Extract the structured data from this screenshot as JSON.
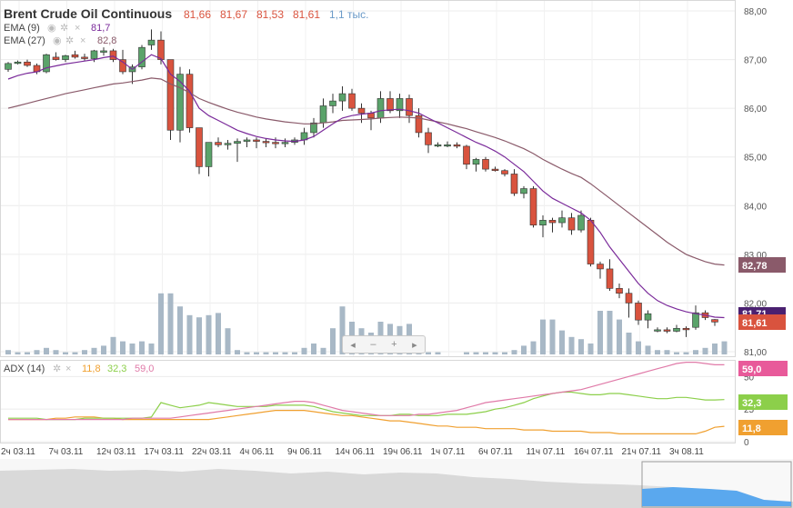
{
  "header": {
    "symbol": "Brent Crude Oil Continuous",
    "open": "81,66",
    "high": "81,67",
    "low": "81,53",
    "close": "81,61",
    "volume": "1,1 тыс."
  },
  "indicators": {
    "ema9": {
      "label": "EMA (9)",
      "value": "81,7",
      "color": "#7a2a9a"
    },
    "ema27": {
      "label": "EMA (27)",
      "value": "82,8",
      "color": "#8a5a6a"
    },
    "adx": {
      "label": "ADX (14)",
      "adx_value": "11,8",
      "plus_di": "32,3",
      "minus_di": "59,0",
      "adx_color": "#f0a030",
      "plus_color": "#8ccf4a",
      "minus_color": "#e07aa8"
    }
  },
  "price_tags": {
    "ema27": "82,78",
    "ema9": "81,71",
    "close": "81,61"
  },
  "adx_tags": {
    "minus_di": "59,0",
    "plus_di": "32,3",
    "adx": "11,8"
  },
  "nav": {
    "left": "◂",
    "minus": "‒",
    "plus": "+",
    "right": "▸"
  },
  "colors": {
    "up": "#5aa36a",
    "down": "#d9533e",
    "volume": "#a8b8c6"
  },
  "chart_data": [
    {
      "type": "candlestick",
      "title": "Brent Crude Oil Continuous",
      "y_ticks": [
        "88,00",
        "87,00",
        "86,00",
        "85,00",
        "84,00",
        "83,00",
        "82,00",
        "81,00"
      ],
      "ylim": [
        81,
        88
      ],
      "x_ticks": [
        "2ч 03.11",
        "7ч 03.11",
        "12ч 03.11",
        "17ч 03.11",
        "22ч 03.11",
        "4ч 06.11",
        "9ч 06.11",
        "14ч 06.11",
        "19ч 06.11",
        "1ч 07.11",
        "6ч 07.11",
        "11ч 07.11",
        "16ч 07.11",
        "21ч 07.11",
        "3ч 08.11"
      ],
      "grid": true,
      "ohlc": [
        [
          86.8,
          86.95,
          86.75,
          86.92
        ],
        [
          86.92,
          86.98,
          86.9,
          86.95
        ],
        [
          86.95,
          87.0,
          86.85,
          86.88
        ],
        [
          86.88,
          86.92,
          86.7,
          86.75
        ],
        [
          86.75,
          87.12,
          86.72,
          87.1
        ],
        [
          87.05,
          87.15,
          86.98,
          87.0
        ],
        [
          87.0,
          87.1,
          86.95,
          87.08
        ],
        [
          87.1,
          87.18,
          87.02,
          87.05
        ],
        [
          87.05,
          87.12,
          86.98,
          87.02
        ],
        [
          87.02,
          87.2,
          86.95,
          87.18
        ],
        [
          87.15,
          87.25,
          87.08,
          87.18
        ],
        [
          87.18,
          87.22,
          86.95,
          87.0
        ],
        [
          87.0,
          87.2,
          86.7,
          86.75
        ],
        [
          86.75,
          86.9,
          86.5,
          86.85
        ],
        [
          86.85,
          87.3,
          86.8,
          87.25
        ],
        [
          87.3,
          87.62,
          87.2,
          87.4
        ],
        [
          87.4,
          87.58,
          86.9,
          87.0
        ],
        [
          87.0,
          86.95,
          85.35,
          85.55
        ],
        [
          85.55,
          86.85,
          85.3,
          86.7
        ],
        [
          86.7,
          86.8,
          85.5,
          85.6
        ],
        [
          85.6,
          85.6,
          84.65,
          84.8
        ],
        [
          84.8,
          85.3,
          84.6,
          85.3
        ],
        [
          85.3,
          85.4,
          85.2,
          85.25
        ],
        [
          85.25,
          85.35,
          85.15,
          85.28
        ],
        [
          85.28,
          85.38,
          84.9,
          85.32
        ],
        [
          85.32,
          85.4,
          85.2,
          85.35
        ],
        [
          85.35,
          85.4,
          85.18,
          85.32
        ],
        [
          85.32,
          85.38,
          85.2,
          85.3
        ],
        [
          85.3,
          85.4,
          85.18,
          85.28
        ],
        [
          85.28,
          85.38,
          85.2,
          85.3
        ],
        [
          85.3,
          85.4,
          85.25,
          85.35
        ],
        [
          85.35,
          85.6,
          85.25,
          85.5
        ],
        [
          85.5,
          85.8,
          85.4,
          85.7
        ],
        [
          85.7,
          86.2,
          85.6,
          86.05
        ],
        [
          86.05,
          86.3,
          85.9,
          86.15
        ],
        [
          86.15,
          86.45,
          85.95,
          86.3
        ],
        [
          86.3,
          86.4,
          85.95,
          86.0
        ],
        [
          86.0,
          86.1,
          85.7,
          85.9
        ],
        [
          85.9,
          85.95,
          85.55,
          85.8
        ],
        [
          85.8,
          86.35,
          85.7,
          86.2
        ],
        [
          86.2,
          86.35,
          85.9,
          85.95
        ],
        [
          85.95,
          86.3,
          85.8,
          86.2
        ],
        [
          86.2,
          86.28,
          85.7,
          85.85
        ],
        [
          85.85,
          86.0,
          85.4,
          85.5
        ],
        [
          85.5,
          85.6,
          85.08,
          85.25
        ],
        [
          85.25,
          85.3,
          85.2,
          85.25
        ],
        [
          85.25,
          85.32,
          85.2,
          85.25
        ],
        [
          85.25,
          85.3,
          85.18,
          85.22
        ],
        [
          85.22,
          85.25,
          84.75,
          84.85
        ],
        [
          84.85,
          84.98,
          84.7,
          84.95
        ],
        [
          84.95,
          85.0,
          84.7,
          84.75
        ],
        [
          84.75,
          84.8,
          84.7,
          84.72
        ],
        [
          84.72,
          84.75,
          84.6,
          84.65
        ],
        [
          84.65,
          84.75,
          84.2,
          84.25
        ],
        [
          84.25,
          84.4,
          84.15,
          84.35
        ],
        [
          84.35,
          84.4,
          83.55,
          83.6
        ],
        [
          83.6,
          83.8,
          83.35,
          83.7
        ],
        [
          83.7,
          83.75,
          83.45,
          83.65
        ],
        [
          83.65,
          83.9,
          83.55,
          83.75
        ],
        [
          83.75,
          83.85,
          83.4,
          83.5
        ],
        [
          83.5,
          83.9,
          83.45,
          83.8
        ],
        [
          83.7,
          83.75,
          82.75,
          82.8
        ],
        [
          82.8,
          82.85,
          82.5,
          82.7
        ],
        [
          82.7,
          82.9,
          82.25,
          82.3
        ],
        [
          82.3,
          82.4,
          82.1,
          82.2
        ],
        [
          82.2,
          82.3,
          81.7,
          82.0
        ],
        [
          82.0,
          82.05,
          81.55,
          81.65
        ],
        [
          81.65,
          81.85,
          81.48,
          81.78
        ],
        [
          81.45,
          81.5,
          81.4,
          81.45
        ],
        [
          81.45,
          81.5,
          81.38,
          81.42
        ],
        [
          81.42,
          81.55,
          81.4,
          81.48
        ],
        [
          81.48,
          81.52,
          81.3,
          81.45
        ],
        [
          81.5,
          81.95,
          81.45,
          81.8
        ],
        [
          81.8,
          81.85,
          81.65,
          81.7
        ],
        [
          81.66,
          81.67,
          81.53,
          81.61
        ]
      ],
      "volume": [
        2,
        1,
        1,
        2,
        3,
        2,
        1,
        1,
        2,
        3,
        4,
        8,
        6,
        5,
        6,
        5,
        28,
        28,
        22,
        18,
        17,
        18,
        19,
        12,
        2,
        1,
        1,
        1,
        1,
        1,
        1,
        3,
        5,
        3,
        12,
        22,
        15,
        12,
        10,
        15,
        14,
        13,
        14,
        8,
        1,
        1,
        0,
        0,
        1,
        1,
        1,
        1,
        1,
        2,
        4,
        6,
        16,
        16,
        11,
        8,
        7,
        5,
        20,
        20,
        16,
        10,
        6,
        4,
        2,
        2,
        1,
        1,
        2,
        3,
        5,
        6
      ],
      "ema9": [
        86.6,
        86.67,
        86.72,
        86.75,
        86.83,
        86.87,
        86.91,
        86.94,
        86.97,
        87.0,
        87.04,
        87.07,
        86.95,
        86.8,
        86.95,
        87.1,
        87.02,
        86.7,
        86.55,
        86.35,
        86.0,
        85.85,
        85.75,
        85.65,
        85.55,
        85.48,
        85.42,
        85.38,
        85.35,
        85.33,
        85.32,
        85.35,
        85.42,
        85.55,
        85.68,
        85.8,
        85.85,
        85.88,
        85.9,
        85.95,
        85.97,
        85.98,
        85.95,
        85.9,
        85.8,
        85.7,
        85.6,
        85.5,
        85.4,
        85.3,
        85.22,
        85.12,
        85.0,
        84.85,
        84.7,
        84.5,
        84.3,
        84.15,
        84.05,
        83.95,
        83.85,
        83.7,
        83.45,
        83.15,
        82.9,
        82.65,
        82.4,
        82.2,
        82.05,
        81.95,
        81.88,
        81.82,
        81.78,
        81.75,
        81.71,
        81.7
      ],
      "ema27": [
        86.0,
        86.05,
        86.1,
        86.15,
        86.2,
        86.25,
        86.3,
        86.34,
        86.38,
        86.42,
        86.46,
        86.5,
        86.52,
        86.55,
        86.58,
        86.62,
        86.6,
        86.5,
        86.42,
        86.32,
        86.2,
        86.12,
        86.05,
        85.98,
        85.92,
        85.87,
        85.82,
        85.78,
        85.75,
        85.72,
        85.7,
        85.68,
        85.68,
        85.7,
        85.72,
        85.75,
        85.76,
        85.77,
        85.78,
        85.8,
        85.81,
        85.82,
        85.81,
        85.8,
        85.76,
        85.72,
        85.68,
        85.63,
        85.58,
        85.52,
        85.46,
        85.4,
        85.33,
        85.25,
        85.17,
        85.07,
        84.95,
        84.85,
        84.75,
        84.66,
        84.58,
        84.45,
        84.3,
        84.15,
        84.0,
        83.85,
        83.7,
        83.55,
        83.4,
        83.25,
        83.12,
        83.0,
        82.92,
        82.85,
        82.8,
        82.78
      ]
    },
    {
      "type": "line",
      "title": "ADX (14)",
      "y_ticks": [
        "50",
        "25",
        "0"
      ],
      "ylim": [
        0,
        60
      ],
      "series": [
        {
          "name": "ADX",
          "values": [
            17,
            17,
            17,
            17,
            17,
            18,
            18,
            19,
            19,
            19,
            18,
            18,
            17,
            17,
            17,
            17,
            17,
            17,
            17,
            17,
            17,
            17,
            18,
            19,
            20,
            21,
            22,
            23,
            24,
            24,
            24,
            24,
            23,
            22,
            21,
            20,
            20,
            19,
            18,
            17,
            16,
            16,
            15,
            14,
            13,
            12,
            12,
            11,
            11,
            11,
            10,
            10,
            10,
            10,
            9,
            9,
            9,
            8,
            8,
            8,
            8,
            7,
            7,
            7,
            6,
            6,
            6,
            6,
            6,
            6,
            6,
            6,
            6,
            8,
            11,
            11.8
          ]
        },
        {
          "name": "+DI",
          "values": [
            18,
            18,
            18,
            18,
            17,
            17,
            17,
            17,
            18,
            18,
            18,
            18,
            18,
            18,
            18,
            19,
            30,
            28,
            26,
            27,
            28,
            30,
            29,
            28,
            27,
            27,
            27,
            27,
            28,
            28,
            28,
            28,
            27,
            25,
            23,
            22,
            21,
            20,
            20,
            20,
            20,
            21,
            21,
            20,
            20,
            20,
            21,
            21,
            21,
            22,
            23,
            25,
            26,
            28,
            30,
            33,
            35,
            37,
            38,
            38,
            37,
            36,
            36,
            37,
            37,
            36,
            35,
            34,
            33,
            33,
            34,
            34,
            33,
            32,
            32,
            32.3
          ]
        },
        {
          "name": "-DI",
          "values": [
            17,
            17,
            17,
            17,
            17,
            17,
            17,
            17,
            17,
            17,
            17,
            17,
            17,
            18,
            18,
            18,
            18,
            18,
            19,
            20,
            21,
            22,
            23,
            24,
            25,
            26,
            27,
            28,
            29,
            30,
            31,
            31,
            30,
            28,
            26,
            24,
            23,
            22,
            21,
            20,
            20,
            20,
            20,
            21,
            21,
            22,
            23,
            24,
            26,
            28,
            30,
            31,
            32,
            33,
            34,
            35,
            36,
            37,
            38,
            39,
            40,
            42,
            44,
            46,
            48,
            50,
            52,
            54,
            56,
            58,
            60,
            61,
            61,
            60,
            59,
            59.0
          ]
        }
      ]
    }
  ]
}
